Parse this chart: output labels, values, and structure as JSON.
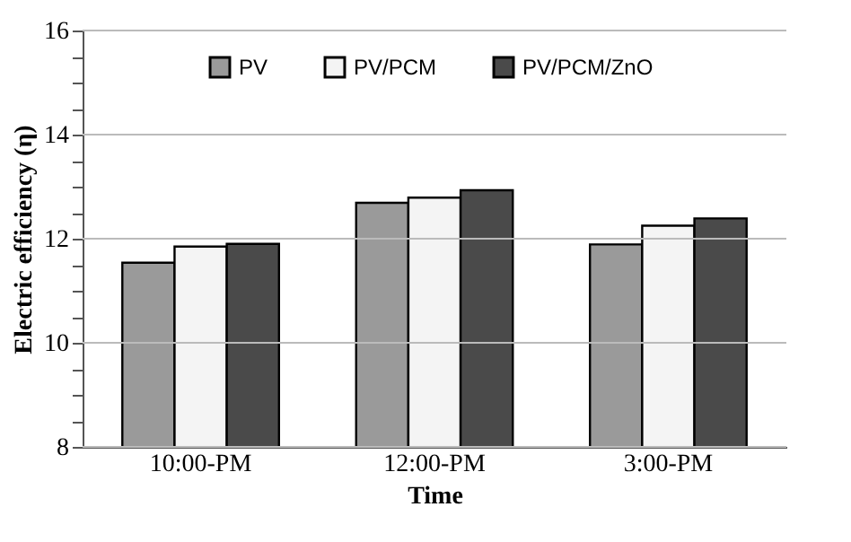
{
  "chart_data": {
    "type": "bar",
    "xlabel": "Time",
    "ylabel": "Electric efficiency (η)",
    "categories": [
      "10:00-PM",
      "12:00-PM",
      "3:00-PM"
    ],
    "series": [
      {
        "name": "PV",
        "color": "#9a9a9a",
        "values": [
          11.54,
          12.69,
          11.89
        ]
      },
      {
        "name": "PV/PCM",
        "color": "#f4f4f4",
        "values": [
          11.85,
          12.79,
          12.25
        ]
      },
      {
        "name": "PV/PCM/ZnO",
        "color": "#4a4a4a",
        "values": [
          11.9,
          12.93,
          12.39
        ]
      }
    ],
    "ylim": [
      8,
      16
    ],
    "yticks": [
      8,
      {
        "value": 8.5,
        "label": null
      },
      {
        "value": 9,
        "label": null
      },
      {
        "value": 9.5,
        "label": null
      },
      10,
      {
        "value": 10.5,
        "label": null
      },
      {
        "value": 11,
        "label": null
      },
      {
        "value": 11.5,
        "label": null
      },
      12,
      {
        "value": 12.5,
        "label": null
      },
      {
        "value": 13,
        "label": null
      },
      {
        "value": 13.5,
        "label": null
      },
      14,
      {
        "value": 14.5,
        "label": null
      },
      {
        "value": 15,
        "label": null
      },
      {
        "value": 15.5,
        "label": null
      },
      16
    ],
    "grid": "y",
    "legend": "top"
  }
}
